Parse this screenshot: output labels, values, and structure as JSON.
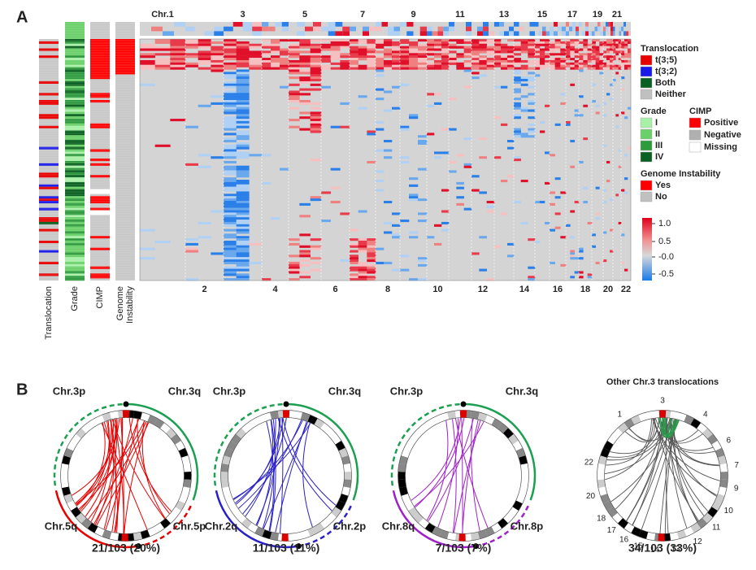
{
  "panel_a": {
    "label": "A",
    "chromosomes_top": [
      "Chr.1",
      "3",
      "5",
      "7",
      "9",
      "11",
      "13",
      "15",
      "17",
      "19",
      "21"
    ],
    "chromosomes_bottom": [
      "2",
      "4",
      "6",
      "8",
      "10",
      "12",
      "14",
      "16",
      "18",
      "20",
      "22"
    ],
    "tracks": [
      [
        "Translocation"
      ],
      [
        "Grade"
      ],
      [
        "CIMP"
      ],
      [
        "Genome",
        "Instability"
      ]
    ],
    "legend": {
      "translocation": {
        "title": "Translocation",
        "items": [
          "t(3;5)",
          "t(3;2)",
          "Both",
          "Neither"
        ]
      },
      "grade": {
        "title": "Grade",
        "items": [
          "I",
          "II",
          "III",
          "IV"
        ]
      },
      "cimp": {
        "title": "CIMP",
        "items": [
          "Positive",
          "Negative",
          "Missing"
        ]
      },
      "genome_instability": {
        "title": "Genome Instability",
        "items": [
          "Yes",
          "No"
        ]
      },
      "colorbar_ticks": [
        "1.0",
        "0.5",
        "-0.0",
        "-0.5"
      ]
    }
  },
  "panel_b": {
    "label": "B",
    "circos": [
      {
        "labels": [
          "Chr.3p",
          "Chr.3q",
          "Chr.5q",
          "Chr.5p"
        ],
        "caption": "21/103 (20%)"
      },
      {
        "labels": [
          "Chr.3p",
          "Chr.3q",
          "Chr.2q",
          "Chr.2p"
        ],
        "caption": "11/103 (11%)"
      },
      {
        "labels": [
          "Chr.3p",
          "Chr.3q",
          "Chr.8q",
          "Chr.8p"
        ],
        "caption": "7/103 (7%)"
      }
    ],
    "other": {
      "title": "Other Chr.3 translocations",
      "chromosomes": [
        "1",
        "3",
        "4",
        "6",
        "7",
        "9",
        "10",
        "11",
        "12",
        "13",
        "14",
        "15",
        "16",
        "17",
        "18",
        "20",
        "22"
      ],
      "caption": "34/103 (33%)"
    }
  }
}
